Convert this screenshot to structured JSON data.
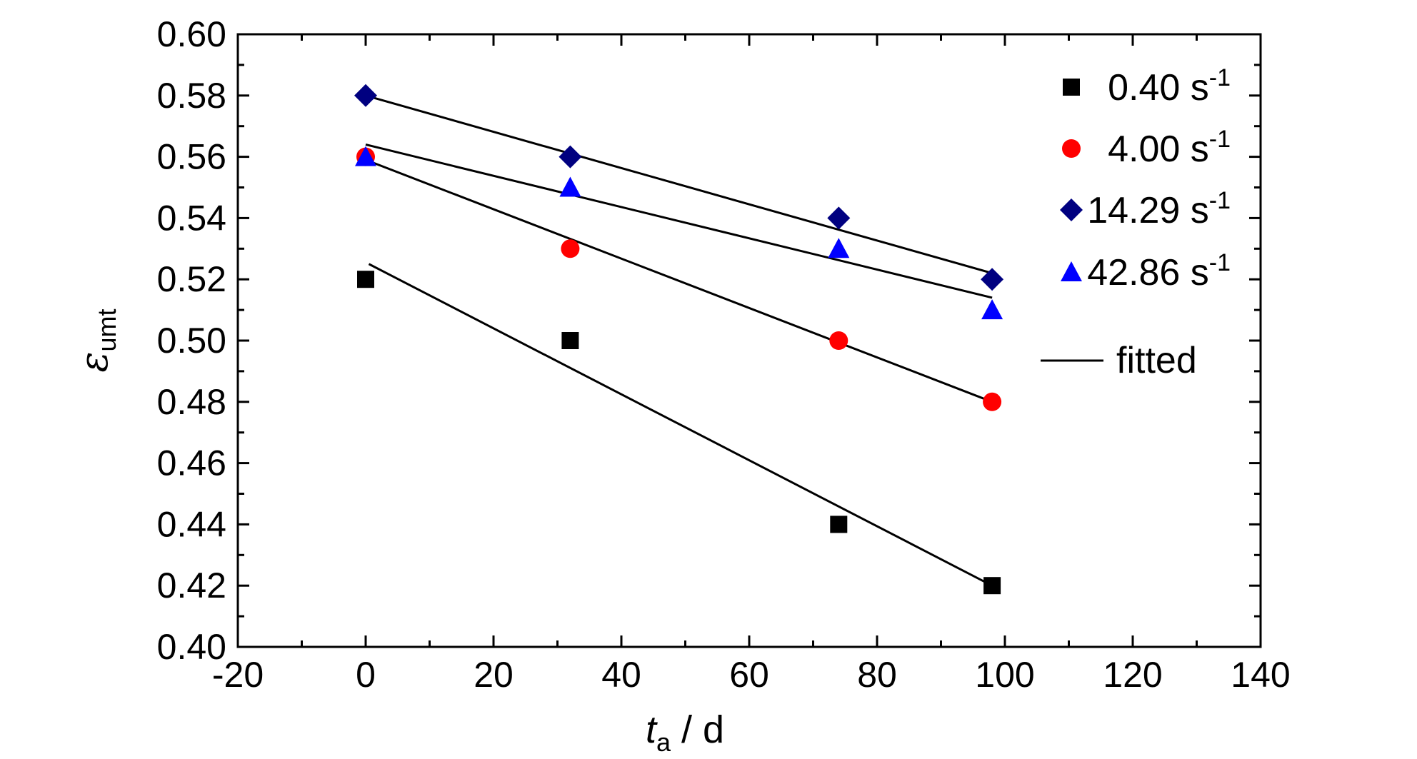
{
  "chart_data": {
    "type": "scatter",
    "xlabel": {
      "main": "t",
      "sub": "a",
      "unit": " / d"
    },
    "ylabel": {
      "main": "ε",
      "sub": "umt"
    },
    "xlim": [
      -20,
      140
    ],
    "ylim": [
      0.4,
      0.6
    ],
    "xticks": [
      "-20",
      "0",
      "20",
      "40",
      "60",
      "80",
      "100",
      "120",
      "140"
    ],
    "yticks": [
      "0.40",
      "0.42",
      "0.44",
      "0.46",
      "0.48",
      "0.50",
      "0.52",
      "0.54",
      "0.56",
      "0.58",
      "0.60"
    ],
    "grid": false,
    "legend_position": "top-right",
    "series": [
      {
        "name": "0.40 s",
        "superscript": "-1",
        "marker": "square",
        "color": "#000000",
        "x": [
          0,
          32,
          74,
          98
        ],
        "y": [
          0.52,
          0.5,
          0.44,
          0.42
        ]
      },
      {
        "name": "4.00 s",
        "superscript": "-1",
        "marker": "circle",
        "color": "#ff0000",
        "x": [
          0,
          32,
          74,
          98
        ],
        "y": [
          0.56,
          0.53,
          0.5,
          0.48
        ]
      },
      {
        "name": "14.29 s",
        "superscript": "-1",
        "marker": "diamond",
        "color": "#000080",
        "x": [
          0,
          32,
          74,
          98
        ],
        "y": [
          0.58,
          0.56,
          0.54,
          0.52
        ]
      },
      {
        "name": "42.86 s",
        "superscript": "-1",
        "marker": "triangle",
        "color": "#0000ff",
        "x": [
          0,
          32,
          74,
          98
        ],
        "y": [
          0.56,
          0.55,
          0.53,
          0.51
        ]
      }
    ],
    "fits": [
      {
        "x": [
          0.5,
          98
        ],
        "y": [
          0.525,
          0.42
        ]
      },
      {
        "x": [
          0,
          98
        ],
        "y": [
          0.559,
          0.48
        ]
      },
      {
        "x": [
          0,
          98
        ],
        "y": [
          0.58,
          0.522
        ]
      },
      {
        "x": [
          0,
          98
        ],
        "y": [
          0.564,
          0.514
        ]
      }
    ],
    "fit_legend_label": "fitted"
  }
}
